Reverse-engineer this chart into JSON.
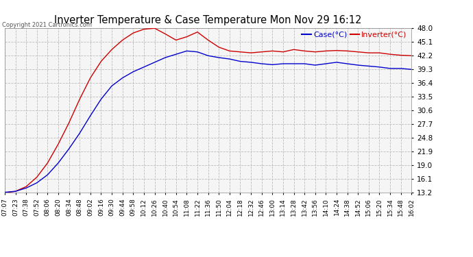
{
  "title": "Inverter Temperature & Case Temperature Mon Nov 29 16:12",
  "copyright": "Copyright 2021 Cartronics.com",
  "legend_case": "Case(°C)",
  "legend_inverter": "Inverter(°C)",
  "ylim": [
    13.2,
    48.0
  ],
  "yticks": [
    13.2,
    16.1,
    19.0,
    21.9,
    24.8,
    27.7,
    30.6,
    33.5,
    36.4,
    39.3,
    42.2,
    45.1,
    48.0
  ],
  "xtick_labels": [
    "07:07",
    "07:23",
    "07:38",
    "07:52",
    "08:06",
    "08:20",
    "08:34",
    "08:48",
    "09:02",
    "09:16",
    "09:30",
    "09:44",
    "09:58",
    "10:12",
    "10:26",
    "10:40",
    "10:54",
    "11:08",
    "11:22",
    "11:36",
    "11:50",
    "12:04",
    "12:18",
    "12:32",
    "12:46",
    "13:00",
    "13:14",
    "13:28",
    "13:42",
    "13:56",
    "14:10",
    "14:24",
    "14:38",
    "14:52",
    "15:06",
    "15:20",
    "15:34",
    "15:48",
    "16:02"
  ],
  "bg_color": "#ffffff",
  "plot_bg_color": "#f5f5f5",
  "grid_color": "#bbbbbb",
  "case_color": "#0000cc",
  "inverter_color": "#cc0000",
  "title_color": "#000000",
  "case_data": [
    13.3,
    13.5,
    14.2,
    15.3,
    17.0,
    19.5,
    22.5,
    25.8,
    29.5,
    33.0,
    35.8,
    37.5,
    38.8,
    39.8,
    40.8,
    41.8,
    42.5,
    43.2,
    43.0,
    42.2,
    41.8,
    41.5,
    41.0,
    40.8,
    40.5,
    40.3,
    40.5,
    40.5,
    40.5,
    40.2,
    40.5,
    40.8,
    40.5,
    40.2,
    40.0,
    39.8,
    39.5,
    39.5,
    39.3
  ],
  "inverter_data": [
    13.2,
    13.5,
    14.5,
    16.5,
    19.5,
    23.5,
    28.0,
    33.0,
    37.5,
    41.0,
    43.5,
    45.5,
    47.0,
    47.8,
    48.0,
    46.8,
    45.5,
    46.2,
    47.2,
    45.5,
    44.0,
    43.2,
    43.0,
    42.8,
    43.0,
    43.2,
    43.0,
    43.5,
    43.2,
    43.0,
    43.2,
    43.3,
    43.2,
    43.0,
    42.8,
    42.8,
    42.5,
    42.3,
    42.2
  ]
}
